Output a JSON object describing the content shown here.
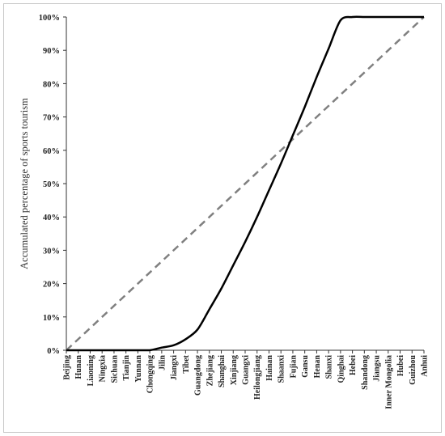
{
  "chart_data": {
    "type": "line",
    "title": "",
    "xlabel": "",
    "ylabel": "Accumulated percentage of sports tourism",
    "ylim": [
      0,
      100
    ],
    "y_ticks": [
      "0%",
      "10%",
      "20%",
      "30%",
      "40%",
      "50%",
      "60%",
      "70%",
      "80%",
      "90%",
      "100%"
    ],
    "grid": false,
    "legend": "none",
    "categories": [
      "Beijing",
      "Hunan",
      "Liaoning",
      "Ningxia",
      "Sichuan",
      "Tianjin",
      "Yunnan",
      "Chongqing",
      "Jilin",
      "Jiangxi",
      "Tibet",
      "Guangdong",
      "Zhejiang",
      "Shanghai",
      "Xinjiang",
      "Guangxi",
      "Heilongjiang",
      "Hainan",
      "Shaanxi",
      "Fujian",
      "Gansu",
      "Henan",
      "Shanxi",
      "Qinghai",
      "Hebei",
      "Shandong",
      "Jiangsu",
      "Inner Mongolia",
      "Hubei",
      "Guizhou",
      "Anhui"
    ],
    "series": [
      {
        "values": [
          0,
          0,
          0,
          0,
          0,
          0,
          0,
          0,
          0.8,
          1.5,
          3.3,
          6.2,
          12.3,
          18.5,
          25.5,
          32.5,
          40,
          48,
          56,
          64.5,
          73,
          82,
          90.5,
          99,
          100,
          100,
          100,
          100,
          100,
          100,
          100
        ],
        "color": "#000000",
        "style": "solid"
      },
      {
        "values": [
          0,
          3.33,
          6.67,
          10,
          13.33,
          16.67,
          20,
          23.33,
          26.67,
          30,
          33.33,
          36.67,
          40,
          43.33,
          46.67,
          50,
          53.33,
          56.67,
          60,
          63.33,
          66.67,
          70,
          73.33,
          76.67,
          80,
          83.33,
          86.67,
          90,
          93.33,
          96.67,
          100
        ],
        "color": "#808080",
        "style": "dashed"
      }
    ]
  }
}
